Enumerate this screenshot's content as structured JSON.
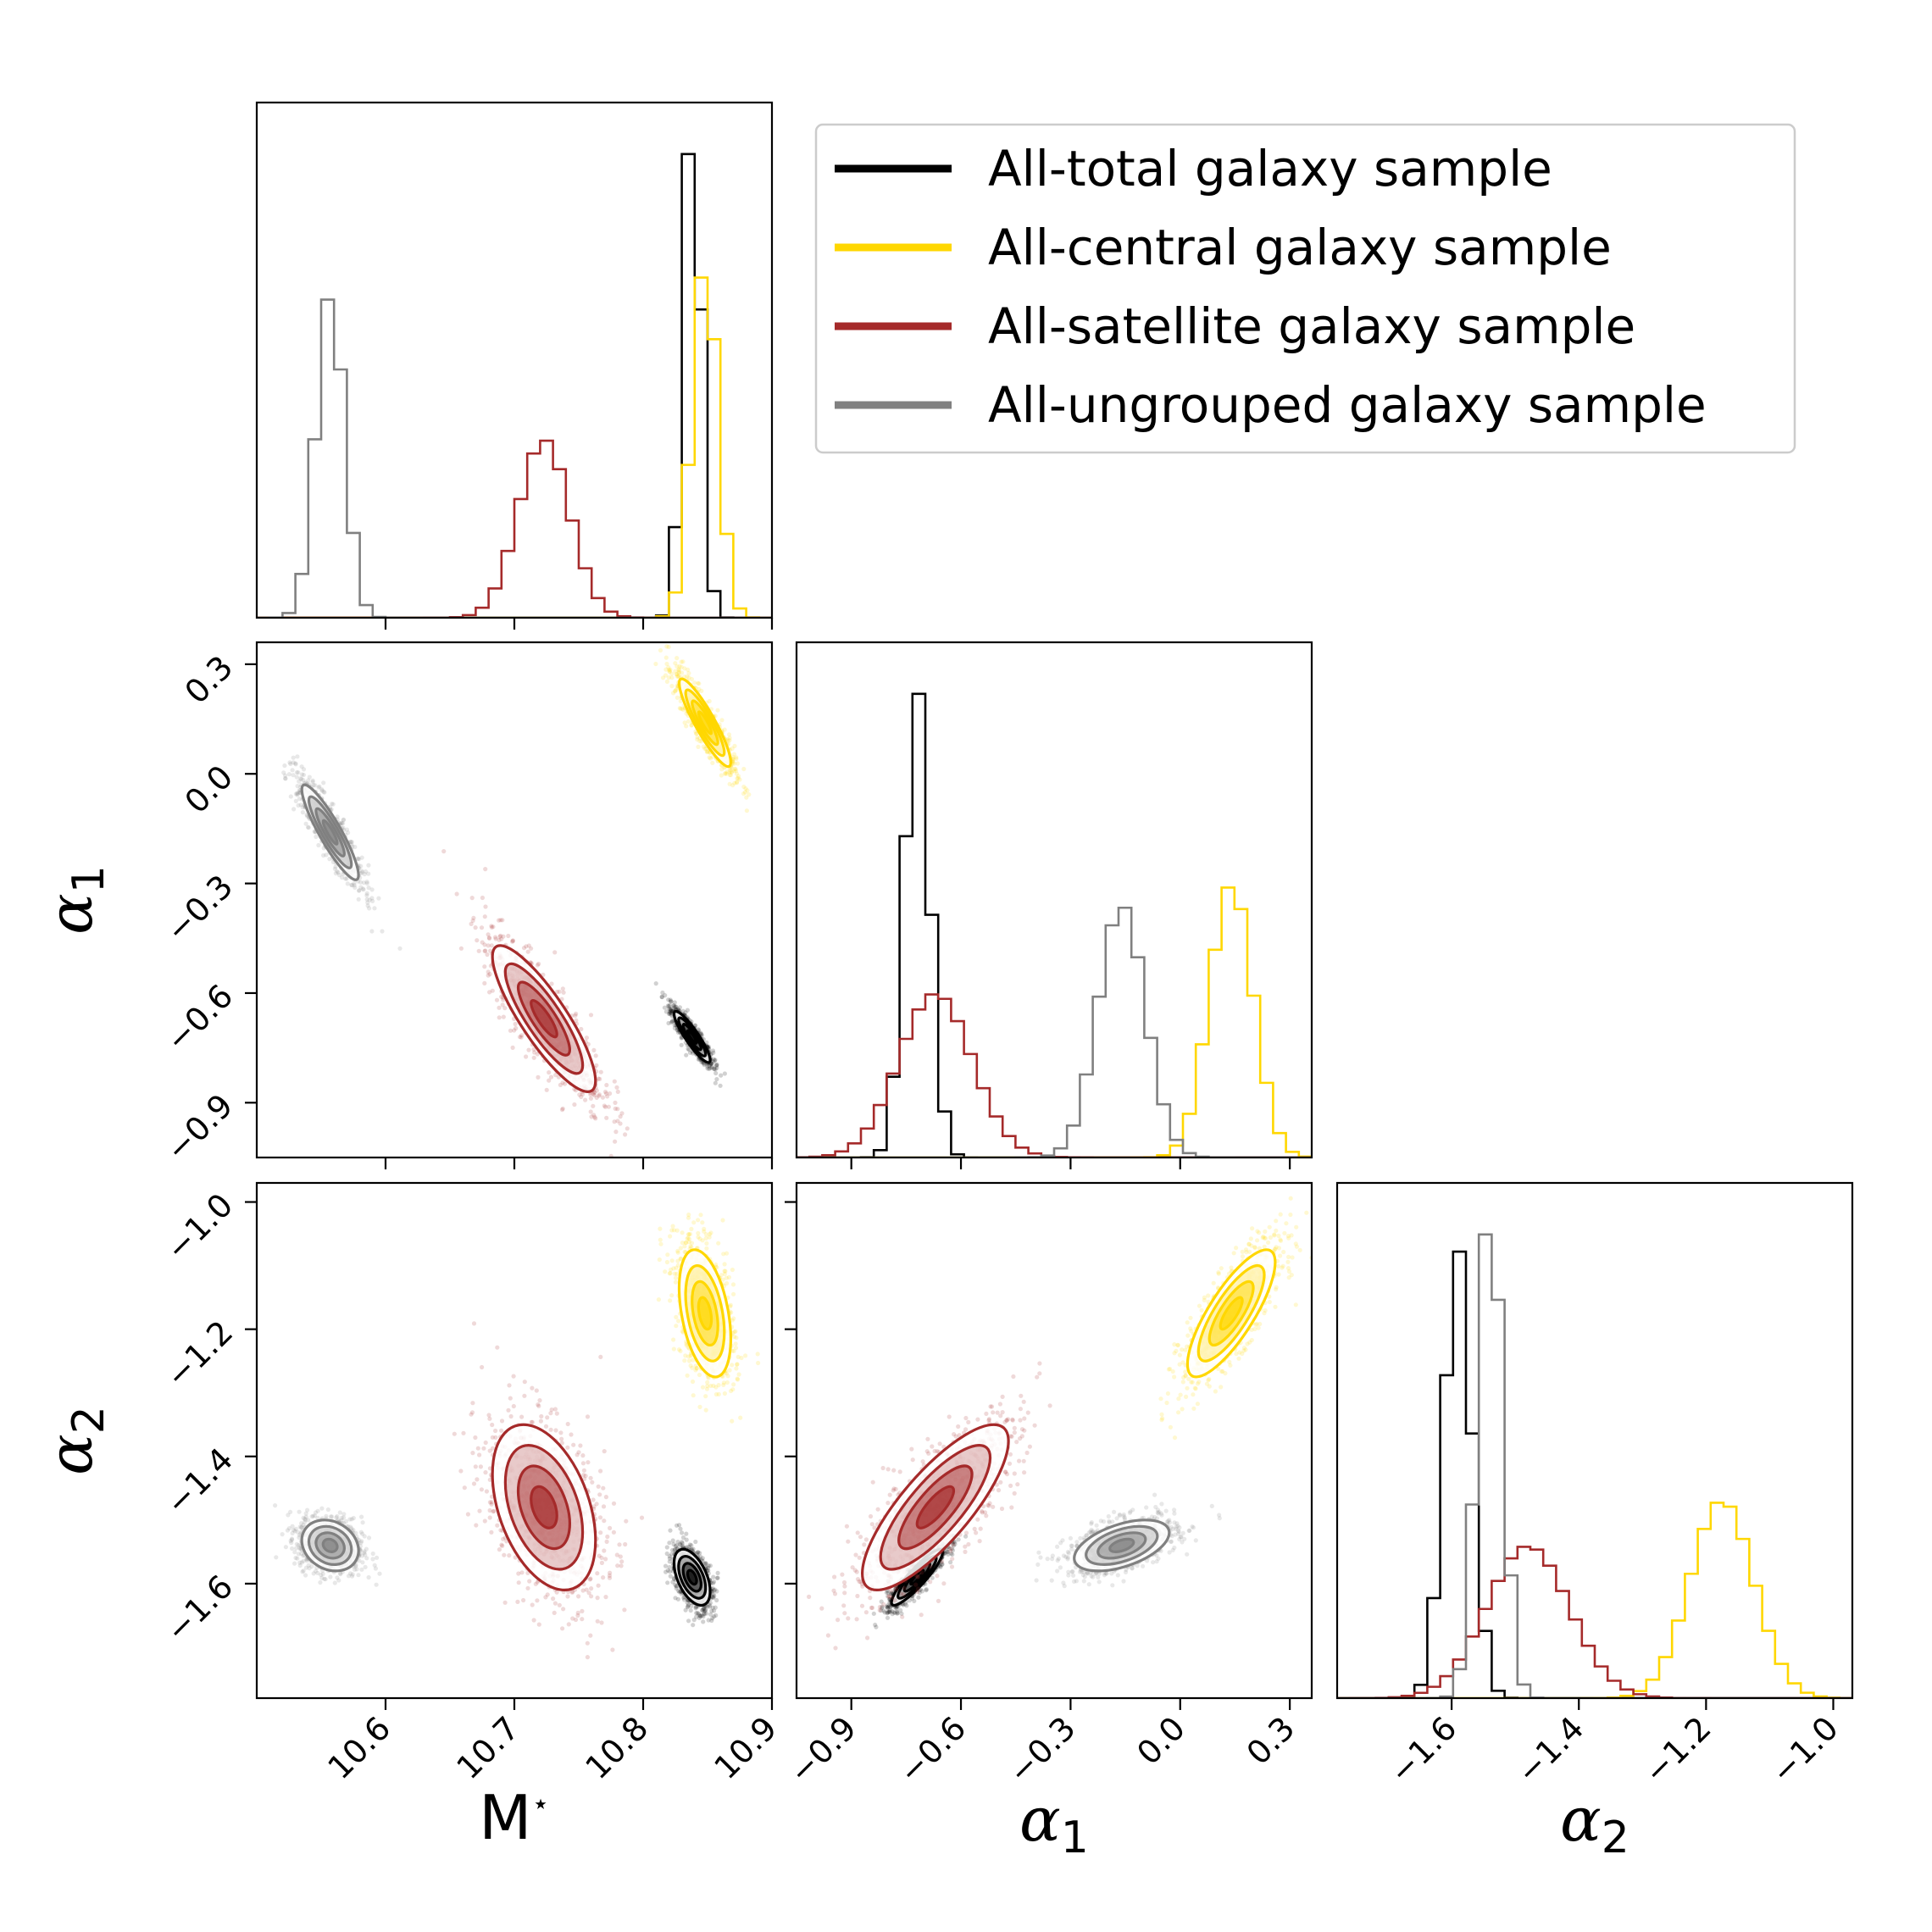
{
  "chart_data": {
    "type": "corner",
    "parameters": [
      {
        "name": "M_star",
        "label": "M",
        "label_sup": "⋆",
        "range": [
          10.5,
          10.9
        ],
        "ticks": [
          10.6,
          10.7,
          10.8,
          10.9
        ],
        "tick_labels": [
          "10.6",
          "10.7",
          "10.8",
          "10.9"
        ]
      },
      {
        "name": "alpha1",
        "label": "α",
        "label_sub": "1",
        "range": [
          -1.05,
          0.36
        ],
        "ticks": [
          -0.9,
          -0.6,
          -0.3,
          0.0,
          0.3
        ],
        "tick_labels": [
          "−0.9",
          "−0.6",
          "−0.3",
          "0.0",
          "0.3"
        ]
      },
      {
        "name": "alpha2",
        "label": "α",
        "label_sub": "2",
        "range": [
          -1.78,
          -0.97
        ],
        "ticks": [
          -1.6,
          -1.4,
          -1.2,
          -1.0
        ],
        "tick_labels": [
          "−1.6",
          "−1.4",
          "−1.2",
          "−1.0"
        ]
      }
    ],
    "series": [
      {
        "name": "All-total galaxy sample",
        "color": "#000000",
        "mean": [
          10.838,
          -0.72,
          -1.59
        ],
        "sigma": [
          0.007,
          0.035,
          0.022
        ],
        "corr": {
          "M_star-alpha1": -0.9,
          "M_star-alpha2": -0.5,
          "alpha1-alpha2": 0.9
        }
      },
      {
        "name": "All-central galaxy sample",
        "color": "#FFD700",
        "mean": [
          10.848,
          0.14,
          -1.175
        ],
        "sigma": [
          0.01,
          0.06,
          0.05
        ],
        "corr": {
          "M_star-alpha1": -0.9,
          "M_star-alpha2": -0.4,
          "alpha1-alpha2": 0.8
        }
      },
      {
        "name": "All-satellite galaxy sample",
        "color": "#A52A2A",
        "mean": [
          10.723,
          -0.67,
          -1.48
        ],
        "sigma": [
          0.02,
          0.1,
          0.065
        ],
        "corr": {
          "M_star-alpha1": -0.85,
          "M_star-alpha2": -0.4,
          "alpha1-alpha2": 0.8
        }
      },
      {
        "name": "All-ungrouped galaxy sample",
        "color": "#808080",
        "mean": [
          10.557,
          -0.16,
          -1.54
        ],
        "sigma": [
          0.011,
          0.065,
          0.02
        ],
        "corr": {
          "M_star-alpha1": -0.9,
          "M_star-alpha2": -0.2,
          "alpha1-alpha2": 0.5
        }
      }
    ],
    "legend_position": "top-right"
  }
}
